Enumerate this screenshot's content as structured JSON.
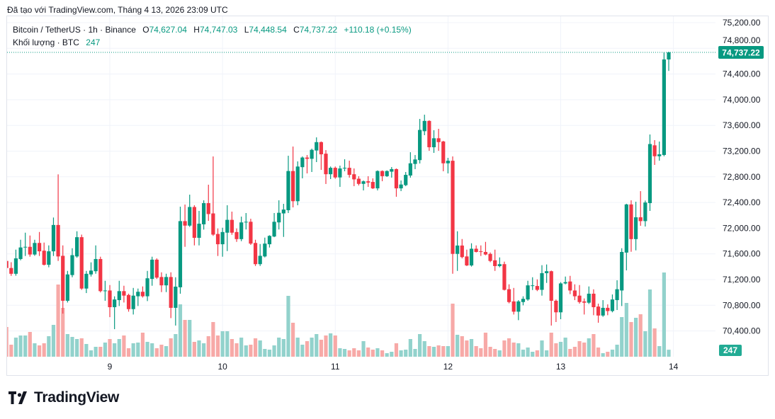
{
  "caption": "Đã tạo với TradingView.com, Tháng 4 13, 2026 23:09 UTC",
  "legend": {
    "symbol": "Bitcoin / TetherUS · 1h · Binance",
    "open_label": "O",
    "open": "74,627.04",
    "high_label": "H",
    "high": "74,747.03",
    "low_label": "L",
    "low": "74,448.54",
    "close_label": "C",
    "close": "74,737.22",
    "change": "+110.18 (+0.15%)",
    "volume_label": "Khối lượng · BTC",
    "volume": "247"
  },
  "logo": {
    "text": "TradingView"
  },
  "colors": {
    "up": "#089981",
    "down": "#f23645",
    "vol_up": "#92d2cc",
    "vol_down": "#f7a9a7",
    "grid": "#f0f3fa",
    "price_label": "#089981",
    "volume_label": "#22ab94"
  },
  "chart_data": {
    "type": "candlestick",
    "interval": "1h",
    "x_start": "2026-04-08 01:00",
    "y_ticks": [
      "75,200.00",
      "74,800.00",
      "74,400.00",
      "74,000.00",
      "73,600.00",
      "73,200.00",
      "72,800.00",
      "72,400.00",
      "72,000.00",
      "71,600.00",
      "71,200.00",
      "70,800.00",
      "70,400.00"
    ],
    "ylim": [
      70200,
      75300
    ],
    "x_ticks": [
      {
        "label": "9",
        "at": "2026-04-09 00:00"
      },
      {
        "label": "10",
        "at": "2026-04-10 00:00"
      },
      {
        "label": "11",
        "at": "2026-04-11 00:00"
      },
      {
        "label": "12",
        "at": "2026-04-12 00:00"
      },
      {
        "label": "13",
        "at": "2026-04-13 00:00"
      },
      {
        "label": "14",
        "at": "2026-04-14 00:00"
      }
    ],
    "last_price": 74737.22,
    "last_price_label": "74,737.22",
    "last_volume_label": "247",
    "grid": true,
    "candle_fields": [
      "open",
      "high",
      "low",
      "close",
      "volume"
    ],
    "candles": [
      [
        71550,
        71650,
        71400,
        71480,
        500
      ],
      [
        71490,
        71520,
        71350,
        71380,
        1050
      ],
      [
        71380,
        71470,
        71258,
        71290,
        425
      ],
      [
        71290,
        71666,
        71260,
        71530,
        675
      ],
      [
        71520,
        71820,
        71500,
        71700,
        750
      ],
      [
        71700,
        71930,
        71567,
        71710,
        750
      ],
      [
        71710,
        71886,
        71556,
        71590,
        875
      ],
      [
        71590,
        71820,
        71570,
        71770,
        475
      ],
      [
        71770,
        71941,
        71567,
        71640,
        400
      ],
      [
        71650,
        71776,
        71420,
        71430,
        475
      ],
      [
        71430,
        71732,
        71391,
        71640,
        725
      ],
      [
        71640,
        72166,
        71567,
        72050,
        1125
      ],
      [
        72050,
        72838,
        71490,
        71560,
        2550
      ],
      [
        71570,
        71732,
        70670,
        70870,
        1725
      ],
      [
        70870,
        71335,
        70843,
        71280,
        800
      ],
      [
        71270,
        71688,
        71236,
        71580,
        700
      ],
      [
        71560,
        71952,
        71540,
        71860,
        625
      ],
      [
        71860,
        71900,
        71040,
        71060,
        650
      ],
      [
        71060,
        71335,
        70990,
        71290,
        450
      ],
      [
        71280,
        71468,
        71247,
        71340,
        225
      ],
      [
        71330,
        71732,
        71291,
        71520,
        350
      ],
      [
        71520,
        71556,
        71000,
        71020,
        350
      ],
      [
        71020,
        71181,
        70870,
        71030,
        500
      ],
      [
        71030,
        71115,
        70615,
        70770,
        625
      ],
      [
        70770,
        70939,
        70428,
        70890,
        475
      ],
      [
        70880,
        71181,
        70788,
        71020,
        625
      ],
      [
        71020,
        71104,
        70843,
        70950,
        750
      ],
      [
        70960,
        70980,
        70700,
        70740,
        300
      ],
      [
        70740,
        71070,
        70656,
        70950,
        475
      ],
      [
        70940,
        71060,
        70788,
        71010,
        500
      ],
      [
        71010,
        71093,
        70920,
        70940,
        850
      ],
      [
        70940,
        71335,
        70865,
        71220,
        525
      ],
      [
        71210,
        71556,
        71104,
        71510,
        475
      ],
      [
        71510,
        71530,
        71210,
        71230,
        300
      ],
      [
        71240,
        71313,
        71005,
        71110,
        425
      ],
      [
        71110,
        71291,
        71005,
        71240,
        375
      ],
      [
        71240,
        71313,
        70600,
        70760,
        650
      ],
      [
        70760,
        71236,
        70484,
        71090,
        800
      ],
      [
        71080,
        72335,
        70980,
        72110,
        1850
      ],
      [
        72110,
        72368,
        71710,
        72040,
        1300
      ],
      [
        72040,
        72522,
        72020,
        72330,
        1300
      ],
      [
        72330,
        72357,
        71732,
        71850,
        525
      ],
      [
        71850,
        72269,
        71732,
        72070,
        575
      ],
      [
        72060,
        72434,
        71978,
        72390,
        475
      ],
      [
        72390,
        72677,
        72114,
        72220,
        725
      ],
      [
        72230,
        73117,
        71880,
        71900,
        1225
      ],
      [
        71910,
        71996,
        71567,
        71750,
        750
      ],
      [
        71750,
        72007,
        71556,
        71940,
        900
      ],
      [
        71930,
        72357,
        71644,
        72130,
        900
      ],
      [
        72130,
        72258,
        71897,
        71930,
        625
      ],
      [
        71940,
        71996,
        71787,
        71830,
        475
      ],
      [
        71830,
        72180,
        71798,
        72090,
        675
      ],
      [
        72090,
        72236,
        71980,
        72100,
        400
      ],
      [
        72100,
        72147,
        71740,
        71760,
        425
      ],
      [
        71770,
        71820,
        71412,
        71440,
        650
      ],
      [
        71440,
        71754,
        71412,
        71570,
        575
      ],
      [
        71560,
        71853,
        71545,
        71760,
        275
      ],
      [
        71750,
        71890,
        71699,
        71880,
        250
      ],
      [
        71870,
        72236,
        71860,
        72100,
        400
      ],
      [
        72090,
        72434,
        71980,
        72240,
        675
      ],
      [
        72230,
        72379,
        71864,
        72290,
        625
      ],
      [
        72280,
        73128,
        72236,
        72890,
        2150
      ],
      [
        72890,
        73271,
        72324,
        72420,
        1200
      ],
      [
        72420,
        73040,
        72357,
        72960,
        675
      ],
      [
        72950,
        73117,
        72776,
        73100,
        425
      ],
      [
        73100,
        73139,
        72853,
        73080,
        550
      ],
      [
        73080,
        73238,
        72875,
        73220,
        675
      ],
      [
        73210,
        73414,
        73029,
        73340,
        800
      ],
      [
        73340,
        73350,
        72908,
        73150,
        600
      ],
      [
        73160,
        73216,
        72688,
        72840,
        750
      ],
      [
        72840,
        72960,
        72765,
        72940,
        825
      ],
      [
        72940,
        72960,
        72770,
        72790,
        750
      ],
      [
        72790,
        72974,
        72643,
        72930,
        300
      ],
      [
        72930,
        73073,
        72886,
        72940,
        275
      ],
      [
        72940,
        73051,
        72787,
        72830,
        225
      ],
      [
        72840,
        72930,
        72654,
        72760,
        300
      ],
      [
        72770,
        72809,
        72665,
        72690,
        225
      ],
      [
        72690,
        72743,
        72588,
        72730,
        550
      ],
      [
        72730,
        72809,
        72643,
        72710,
        325
      ],
      [
        72720,
        72776,
        72610,
        72620,
        250
      ],
      [
        72620,
        72900,
        72588,
        72890,
        300
      ],
      [
        72890,
        72900,
        72731,
        72810,
        225
      ],
      [
        72810,
        72900,
        72798,
        72890,
        125
      ],
      [
        72880,
        72952,
        72787,
        72920,
        175
      ],
      [
        72920,
        72930,
        72489,
        72620,
        475
      ],
      [
        72620,
        72743,
        72577,
        72680,
        225
      ],
      [
        72670,
        72875,
        72654,
        72830,
        250
      ],
      [
        72820,
        73183,
        72787,
        73010,
        625
      ],
      [
        73000,
        73139,
        72919,
        73070,
        275
      ],
      [
        73060,
        73701,
        73007,
        73530,
        800
      ],
      [
        73510,
        73767,
        73448,
        73670,
        550
      ],
      [
        73670,
        73680,
        73205,
        73260,
        375
      ],
      [
        73260,
        73525,
        73172,
        73400,
        350
      ],
      [
        73400,
        73547,
        73205,
        73340,
        400
      ],
      [
        73350,
        73360,
        72886,
        73010,
        375
      ],
      [
        73010,
        73095,
        72853,
        73050,
        375
      ],
      [
        73050,
        73117,
        71291,
        71600,
        1875
      ],
      [
        71600,
        71952,
        71335,
        71730,
        775
      ],
      [
        71730,
        71831,
        71530,
        71550,
        725
      ],
      [
        71560,
        71666,
        71410,
        71420,
        575
      ],
      [
        71420,
        71765,
        71402,
        71680,
        625
      ],
      [
        71680,
        71732,
        71622,
        71630,
        375
      ],
      [
        71640,
        71732,
        71567,
        71630,
        300
      ],
      [
        71630,
        71787,
        71578,
        71590,
        850
      ],
      [
        71600,
        71622,
        71470,
        71490,
        350
      ],
      [
        71500,
        71666,
        71335,
        71410,
        275
      ],
      [
        71410,
        71545,
        71391,
        71440,
        225
      ],
      [
        71440,
        71479,
        71030,
        71040,
        575
      ],
      [
        71050,
        71126,
        70830,
        70850,
        650
      ],
      [
        70860,
        71070,
        70656,
        70700,
        500
      ],
      [
        70700,
        70880,
        70568,
        70860,
        475
      ],
      [
        70850,
        70939,
        70799,
        70900,
        250
      ],
      [
        70890,
        71181,
        70870,
        71110,
        325
      ],
      [
        71110,
        71236,
        71037,
        71110,
        175
      ],
      [
        71100,
        71203,
        71020,
        71040,
        225
      ],
      [
        71040,
        71424,
        70950,
        71300,
        575
      ],
      [
        71300,
        71435,
        71148,
        71330,
        225
      ],
      [
        71330,
        71340,
        70484,
        70870,
        850
      ],
      [
        70870,
        70890,
        70539,
        70690,
        475
      ],
      [
        70690,
        71160,
        70583,
        71140,
        525
      ],
      [
        71140,
        71247,
        71126,
        71160,
        675
      ],
      [
        71170,
        71258,
        70973,
        71030,
        275
      ],
      [
        71030,
        71126,
        70880,
        70940,
        350
      ],
      [
        70950,
        71115,
        70825,
        70850,
        550
      ],
      [
        70860,
        70906,
        70656,
        70840,
        500
      ],
      [
        70840,
        71093,
        70820,
        70980,
        650
      ],
      [
        70980,
        71048,
        70645,
        70770,
        800
      ],
      [
        70780,
        70825,
        70528,
        70640,
        325
      ],
      [
        70640,
        70880,
        70620,
        70760,
        125
      ],
      [
        70760,
        70814,
        70645,
        70710,
        175
      ],
      [
        70710,
        70968,
        70690,
        70890,
        250
      ],
      [
        70880,
        71189,
        70726,
        71050,
        425
      ],
      [
        71030,
        71688,
        70788,
        71630,
        1400
      ],
      [
        71620,
        72380,
        71343,
        72370,
        1900
      ],
      [
        72370,
        72434,
        71633,
        71830,
        1225
      ],
      [
        71830,
        72412,
        71655,
        72170,
        1375
      ],
      [
        72170,
        72577,
        72037,
        72110,
        1500
      ],
      [
        72110,
        72430,
        72026,
        72400,
        900
      ],
      [
        72390,
        73459,
        72269,
        73310,
        2375
      ],
      [
        73290,
        73371,
        72985,
        73120,
        1000
      ],
      [
        73120,
        73349,
        73051,
        73150,
        375
      ],
      [
        73140,
        74737,
        73120,
        74627.04,
        2975
      ],
      [
        74627.04,
        74747.03,
        74448.54,
        74737.22,
        247
      ]
    ]
  }
}
